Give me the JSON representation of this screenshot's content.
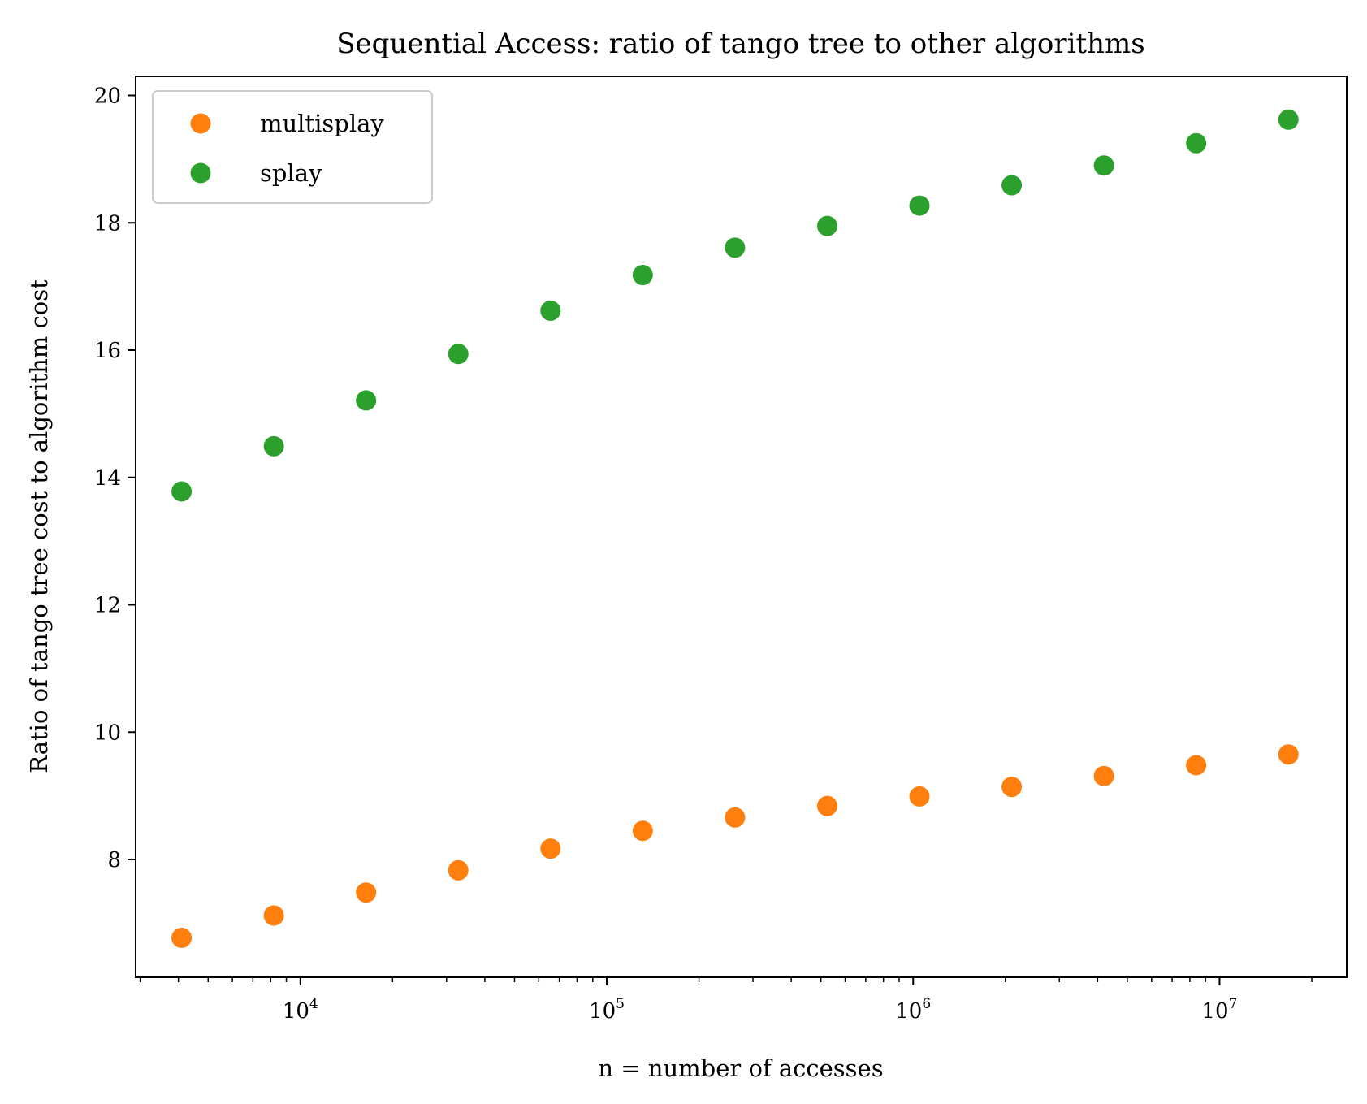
{
  "chart_data": {
    "type": "scatter",
    "title": "Sequential Access: ratio of tango tree to other algorithms",
    "xlabel": "n = number of accesses",
    "ylabel": "Ratio of tango tree cost to algorithm cost",
    "xscale": "log",
    "xlim": [
      2900,
      26000000
    ],
    "ylim": [
      6.15,
      20.3
    ],
    "x": [
      4096,
      8192,
      16384,
      32768,
      65536,
      131072,
      262144,
      524288,
      1048576,
      2097152,
      4194304,
      8388608,
      16777216
    ],
    "series": [
      {
        "name": "multisplay",
        "color": "#ff7f0e",
        "values": [
          6.77,
          7.12,
          7.48,
          7.83,
          8.17,
          8.45,
          8.66,
          8.84,
          8.99,
          9.14,
          9.31,
          9.48,
          9.65
        ]
      },
      {
        "name": "splay",
        "color": "#2ca02c",
        "values": [
          13.78,
          14.49,
          15.21,
          15.94,
          16.62,
          17.18,
          17.61,
          17.95,
          18.27,
          18.59,
          18.9,
          19.25,
          19.62
        ]
      }
    ],
    "yticks": [
      "8",
      "10",
      "12",
      "14",
      "16",
      "18",
      "20"
    ],
    "xticks": [
      {
        "base": "10",
        "exp": "4"
      },
      {
        "base": "10",
        "exp": "5"
      },
      {
        "base": "10",
        "exp": "6"
      },
      {
        "base": "10",
        "exp": "7"
      }
    ],
    "legend_position": "top-left",
    "grid": false
  }
}
